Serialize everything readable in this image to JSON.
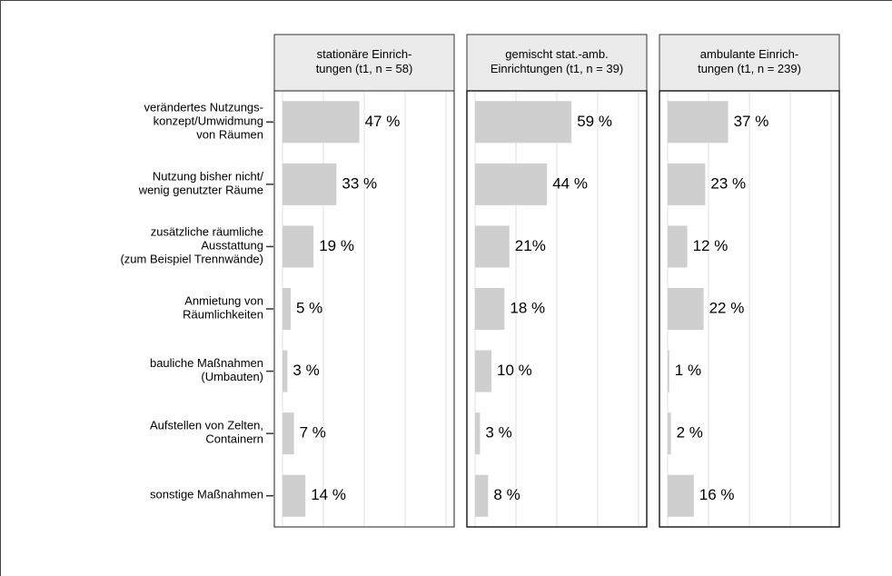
{
  "chart_data": {
    "type": "bar",
    "orientation": "horizontal",
    "categories": [
      "verändertes Nutzungs-\nkonzept/Umwidmung\nvon Räumen",
      "Nutzung bisher nicht/\nwenig genutzter Räume",
      "zusätzliche räumliche\nAusstattung\n(zum Beispiel Trennwände)",
      "Anmietung von\nRäumlichkeiten",
      "bauliche Maßnahmen\n(Umbauten)",
      "Aufstellen von Zelten,\nContainern",
      "sonstige Maßnahmen"
    ],
    "series": [
      {
        "name": "stationäre Einrich-\ntungen (t1, n = 58)",
        "color": "#cfcfcf",
        "values": [
          47,
          33,
          19,
          5,
          3,
          7,
          14
        ],
        "value_labels": [
          "47 %",
          "33 %",
          "19 %",
          "5 %",
          "3 %",
          "7 %",
          "14 %"
        ]
      },
      {
        "name": "gemischt stat.-amb.\nEinrichtungen (t1, n = 39)",
        "color": "#cfcfcf",
        "values": [
          59,
          44,
          21,
          18,
          10,
          3,
          8
        ],
        "value_labels": [
          "59 %",
          "44 %",
          "21%",
          "18 %",
          "10 %",
          "3 %",
          "8 %"
        ]
      },
      {
        "name": "ambulante Einrich-\ntungen (t1, n = 239)",
        "color": "#cfcfcf",
        "values": [
          37,
          23,
          12,
          22,
          1,
          2,
          16
        ],
        "value_labels": [
          "37 %",
          "23 %",
          "12 %",
          "22 %",
          "1 %",
          "2 %",
          "16 %"
        ]
      }
    ],
    "xlim": [
      -5,
      105
    ],
    "xticks": [
      0,
      25,
      50,
      75,
      100
    ],
    "grid": true
  }
}
